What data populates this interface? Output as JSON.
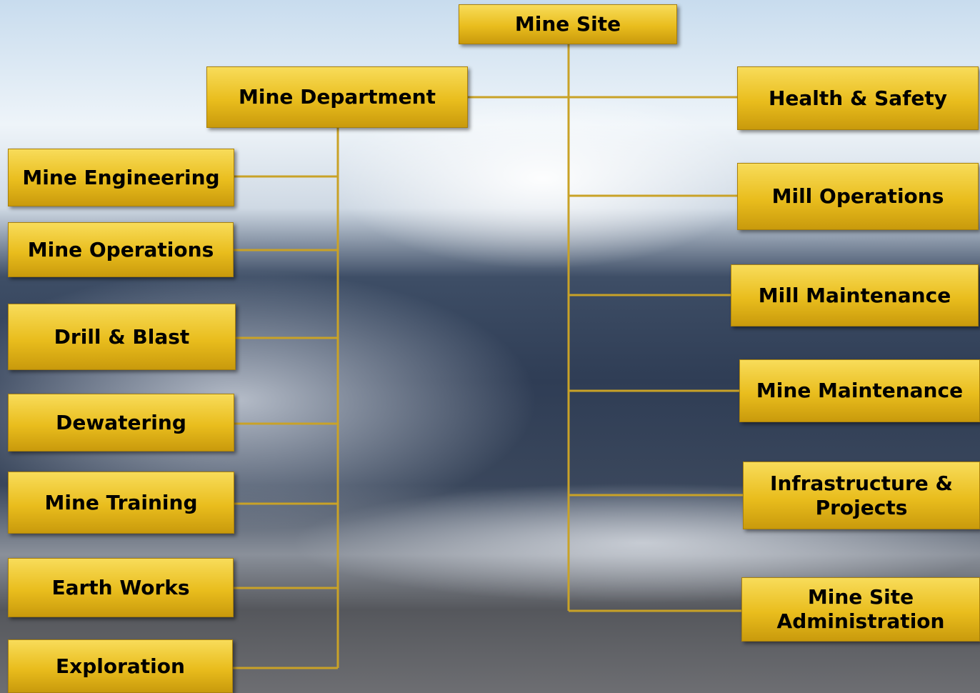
{
  "nodes": [
    {
      "label": "Mine Site"
    },
    {
      "label": "Mine Department"
    },
    {
      "label": "Health & Safety"
    },
    {
      "label": "Mill Operations"
    },
    {
      "label": "Mill Maintenance"
    },
    {
      "label": "Mine Maintenance"
    },
    {
      "label": "Infrastructure & Projects"
    },
    {
      "label": "Mine Site Administration"
    },
    {
      "label": "Mine Engineering"
    },
    {
      "label": "Mine Operations"
    },
    {
      "label": "Drill & Blast"
    },
    {
      "label": "Dewatering"
    },
    {
      "label": "Mine Training"
    },
    {
      "label": "Earth Works"
    },
    {
      "label": "Exploration"
    }
  ]
}
